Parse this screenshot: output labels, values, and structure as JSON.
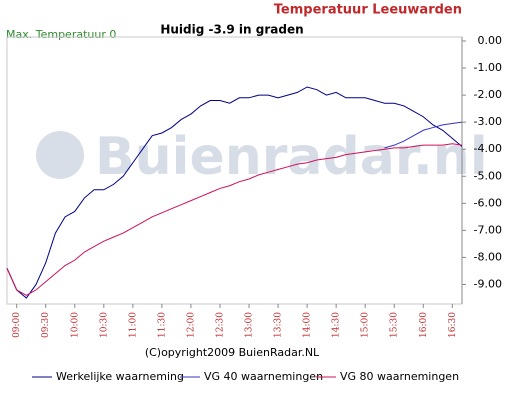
{
  "chart_data": {
    "type": "line",
    "title": "Temperatuur Leeuwarden",
    "subtitle": "Huidig -3.9 in graden",
    "annotation": "Max. Temperatuur 0",
    "watermark": "Buienradar.nl",
    "copyright": "(C)opyright2009 BuienRadar.NL",
    "x": [
      "08:50",
      "09:00",
      "09:10",
      "09:20",
      "09:30",
      "09:40",
      "09:50",
      "10:00",
      "10:10",
      "10:20",
      "10:30",
      "10:40",
      "10:50",
      "11:00",
      "11:10",
      "11:20",
      "11:30",
      "11:40",
      "11:50",
      "12:00",
      "12:10",
      "12:20",
      "12:30",
      "12:40",
      "12:50",
      "13:00",
      "13:10",
      "13:20",
      "13:30",
      "13:40",
      "13:50",
      "14:00",
      "14:10",
      "14:20",
      "14:30",
      "14:40",
      "14:50",
      "15:00",
      "15:10",
      "15:20",
      "15:30",
      "15:40",
      "15:50",
      "16:00",
      "16:10",
      "16:20",
      "16:30",
      "16:40"
    ],
    "xlim": [
      "08:50",
      "16:40"
    ],
    "xticks": [
      "09:00",
      "09:30",
      "10:00",
      "10:30",
      "11:00",
      "11:30",
      "12:00",
      "12:30",
      "13:00",
      "13:30",
      "14:00",
      "14:30",
      "15:00",
      "15:30",
      "16:00",
      "16:30"
    ],
    "ylim": [
      -9.5,
      0
    ],
    "yticks": [
      {
        "value": 0,
        "label": "0.00"
      },
      {
        "value": -1,
        "label": "-1.00"
      },
      {
        "value": -2,
        "label": "-2.00"
      },
      {
        "value": -3,
        "label": "-3.00"
      },
      {
        "value": -4,
        "label": "-4.00"
      },
      {
        "value": -5,
        "label": "-5.00"
      },
      {
        "value": -6,
        "label": "-6.00"
      },
      {
        "value": -7,
        "label": "-7.00"
      },
      {
        "value": -8,
        "label": "-8.00"
      },
      {
        "value": -9,
        "label": "-9.00"
      }
    ],
    "series": [
      {
        "name": "Werkelijke waarneming",
        "color": "#00008b",
        "values": [
          -8.4,
          -9.2,
          -9.5,
          -9.0,
          -8.2,
          -7.1,
          -6.5,
          -6.3,
          -5.8,
          -5.5,
          -5.5,
          -5.3,
          -5.0,
          -4.5,
          -4.0,
          -3.5,
          -3.4,
          -3.2,
          -2.9,
          -2.7,
          -2.4,
          -2.2,
          -2.2,
          -2.3,
          -2.1,
          -2.1,
          -2.0,
          -2.0,
          -2.1,
          -2.0,
          -1.9,
          -1.7,
          -1.8,
          -2.0,
          -1.9,
          -2.1,
          -2.1,
          -2.1,
          -2.2,
          -2.3,
          -2.3,
          -2.4,
          -2.6,
          -2.8,
          -3.1,
          -3.3,
          -3.6,
          -3.9
        ]
      },
      {
        "name": "VG 40 waarnemingen",
        "color": "#3333cc",
        "values": [
          null,
          null,
          null,
          null,
          null,
          null,
          null,
          null,
          null,
          null,
          null,
          null,
          null,
          null,
          null,
          null,
          null,
          null,
          null,
          null,
          null,
          null,
          null,
          null,
          null,
          null,
          null,
          null,
          null,
          null,
          null,
          null,
          null,
          null,
          null,
          null,
          null,
          null,
          null,
          -3.95,
          -3.85,
          -3.7,
          -3.5,
          -3.3,
          -3.2,
          -3.1,
          -3.05,
          -3.0
        ]
      },
      {
        "name": "VG 80 waarnemingen",
        "color": "#d0105a",
        "values": [
          -8.4,
          -9.2,
          -9.4,
          -9.2,
          -8.9,
          -8.6,
          -8.3,
          -8.1,
          -7.8,
          -7.6,
          -7.4,
          -7.25,
          -7.1,
          -6.9,
          -6.7,
          -6.5,
          -6.35,
          -6.2,
          -6.05,
          -5.9,
          -5.75,
          -5.6,
          -5.45,
          -5.35,
          -5.2,
          -5.1,
          -4.95,
          -4.85,
          -4.75,
          -4.65,
          -4.55,
          -4.5,
          -4.4,
          -4.35,
          -4.3,
          -4.2,
          -4.15,
          -4.1,
          -4.05,
          -4.0,
          -3.95,
          -3.95,
          -3.9,
          -3.85,
          -3.85,
          -3.85,
          -3.8,
          -3.85
        ]
      }
    ]
  }
}
